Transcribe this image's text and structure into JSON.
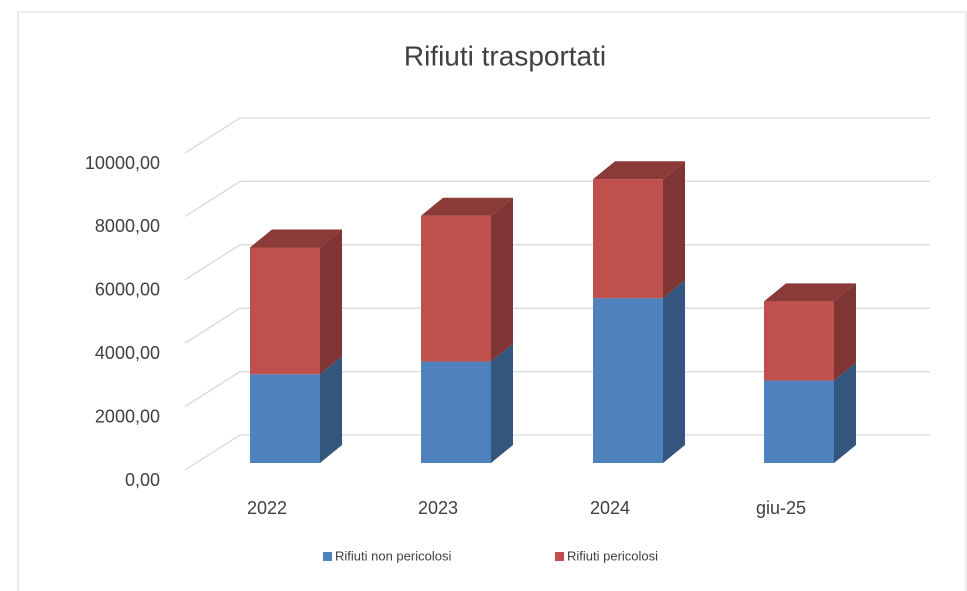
{
  "chart_data": {
    "type": "bar3d_stacked",
    "title": "Rifiuti trasportati",
    "categories": [
      "2022",
      "2023",
      "2024",
      "giu-25"
    ],
    "series": [
      {
        "name": "Rifiuti non pericolosi",
        "color": "#4f81bd",
        "values": [
          2800,
          3200,
          5200,
          2600
        ]
      },
      {
        "name": "Rifiuti pericolosi",
        "color": "#c0504d",
        "values": [
          4000,
          4600,
          3750,
          2500
        ]
      }
    ],
    "ylim": [
      0,
      10000
    ],
    "yticks": [
      {
        "value": 0,
        "label": "0,00"
      },
      {
        "value": 2000,
        "label": "2000,00"
      },
      {
        "value": 4000,
        "label": "4000,00"
      },
      {
        "value": 6000,
        "label": "6000,00"
      },
      {
        "value": 8000,
        "label": "8000,00"
      },
      {
        "value": 10000,
        "label": "10000,00"
      }
    ],
    "grid": true,
    "legend": "bottom"
  }
}
